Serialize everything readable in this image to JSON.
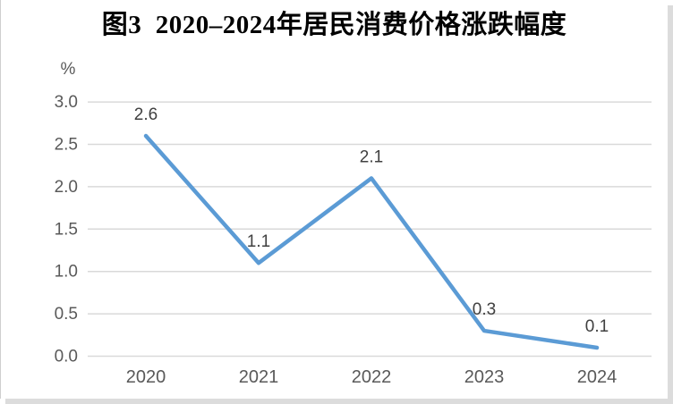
{
  "figure": {
    "title": "图3  2020–2024年居民消费价格涨跌幅度"
  },
  "chart_data": {
    "type": "line",
    "title": "图3  2020–2024年居民消费价格涨跌幅度",
    "categories": [
      "2020",
      "2021",
      "2022",
      "2023",
      "2024"
    ],
    "values": [
      2.6,
      1.1,
      2.1,
      0.3,
      0.1
    ],
    "data_labels": [
      "2.6",
      "1.1",
      "2.1",
      "0.3",
      "0.1"
    ],
    "xlabel": "",
    "ylabel": "%",
    "y_ticks": [
      "0.0",
      "0.5",
      "1.0",
      "1.5",
      "2.0",
      "2.5",
      "3.0"
    ],
    "ylim": [
      0.0,
      3.0
    ],
    "grid": "horizontal",
    "legend": "none",
    "markers": "none",
    "colors": {
      "line": "#5B9BD5",
      "gridline": "#D9D9D9",
      "tick_label": "#595959",
      "data_label": "#404040",
      "title": "#000000",
      "background": "#FFFFFF",
      "card_shadow": "#DCDCDC",
      "card_border": "#CFCFCF"
    }
  }
}
